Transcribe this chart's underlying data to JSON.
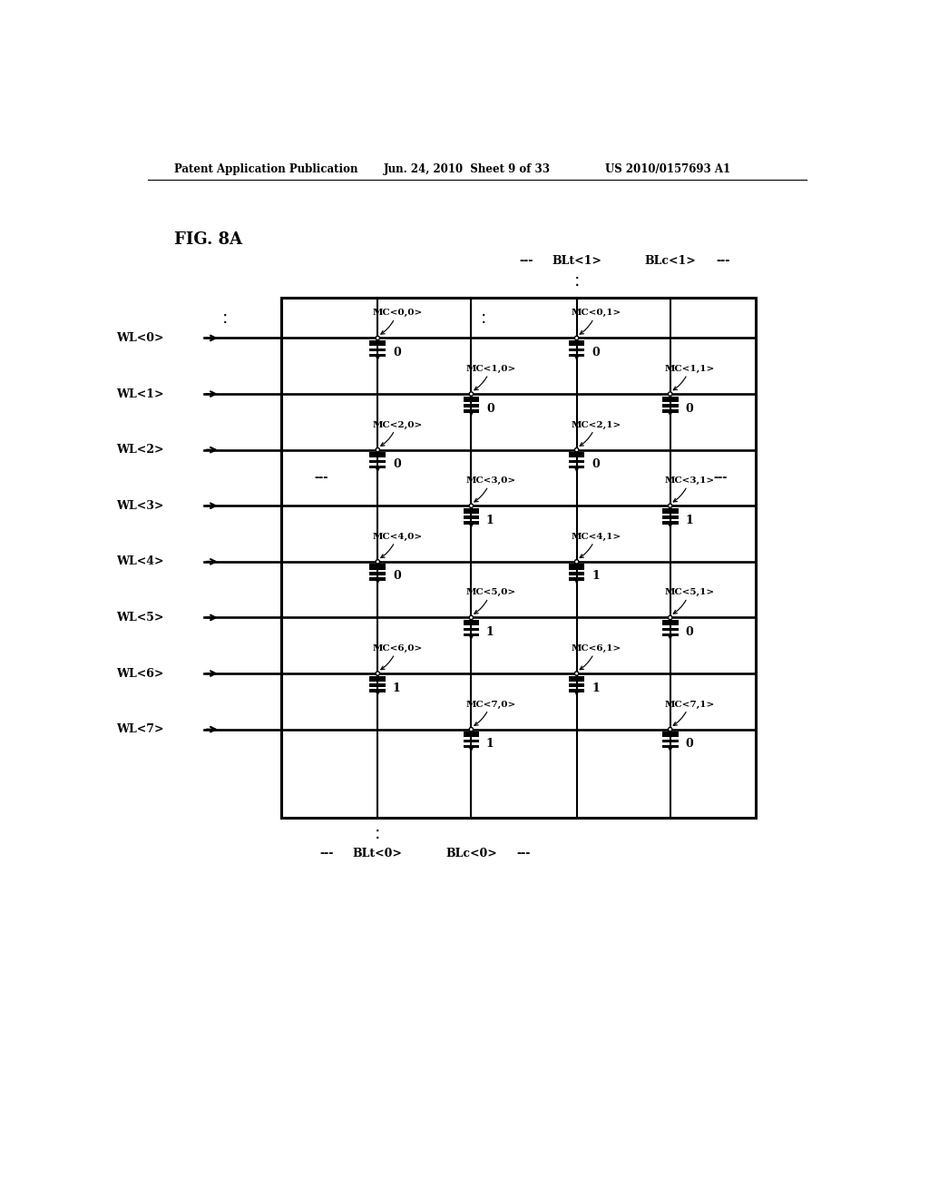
{
  "bg_color": "#ffffff",
  "header_left": "Patent Application Publication",
  "header_mid": "Jun. 24, 2010  Sheet 9 of 33",
  "header_right": "US 2010/0157693 A1",
  "fig_label": "FIG. 8A",
  "wl_labels": [
    "WL<0>",
    "WL<1>",
    "WL<2>",
    "WL<3>",
    "WL<4>",
    "WL<5>",
    "WL<6>",
    "WL<7>"
  ],
  "blt1_label": "BLt<1>",
  "blc1_label": "BLc<1>",
  "blt0_label": "BLt<0>",
  "blc0_label": "BLc<0>",
  "mc_labels": [
    [
      "MC<0,0>",
      "MC<0,1>"
    ],
    [
      "MC<1,0>",
      "MC<1,1>"
    ],
    [
      "MC<2,0>",
      "MC<2,1>"
    ],
    [
      "MC<3,0>",
      "MC<3,1>"
    ],
    [
      "MC<4,0>",
      "MC<4,1>"
    ],
    [
      "MC<5,0>",
      "MC<5,1>"
    ],
    [
      "MC<6,0>",
      "MC<6,1>"
    ],
    [
      "MC<7,0>",
      "MC<7,1>"
    ]
  ],
  "mc_values": [
    [
      0,
      0
    ],
    [
      0,
      0
    ],
    [
      0,
      0
    ],
    [
      1,
      1
    ],
    [
      0,
      1
    ],
    [
      1,
      0
    ],
    [
      1,
      1
    ],
    [
      1,
      0
    ]
  ],
  "GL": 2.35,
  "GR": 9.1,
  "GT": 11.0,
  "GB": 3.55,
  "VX": [
    2.35,
    3.72,
    5.05,
    6.55,
    7.88,
    9.1
  ],
  "WLY": [
    10.42,
    9.62,
    8.82,
    8.02,
    7.22,
    6.42,
    5.62,
    4.82
  ],
  "lc": "#000000",
  "tc": "#000000",
  "cell_s": 0.095
}
